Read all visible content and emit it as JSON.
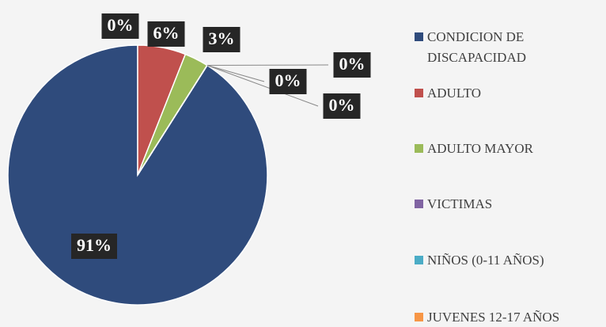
{
  "chart_data": {
    "type": "pie",
    "categories": [
      "CONDICION DE DISCAPACIDAD",
      "ADULTO",
      "ADULTO MAYOR",
      "VICTIMAS",
      "NIÑOS (0-11 AÑOS)",
      "JUVENES 12-17 AÑOS",
      null
    ],
    "values": [
      91,
      6,
      3,
      0,
      0,
      0,
      0
    ],
    "value_labels": [
      "91%",
      "6%",
      "3%",
      "0%",
      "0%",
      "0%",
      "0%"
    ],
    "colors": [
      "#2f4b7c",
      "#c0504d",
      "#9bbb59",
      "#8064a2",
      "#4bacc6",
      "#f79646",
      null
    ],
    "legend": "right"
  }
}
